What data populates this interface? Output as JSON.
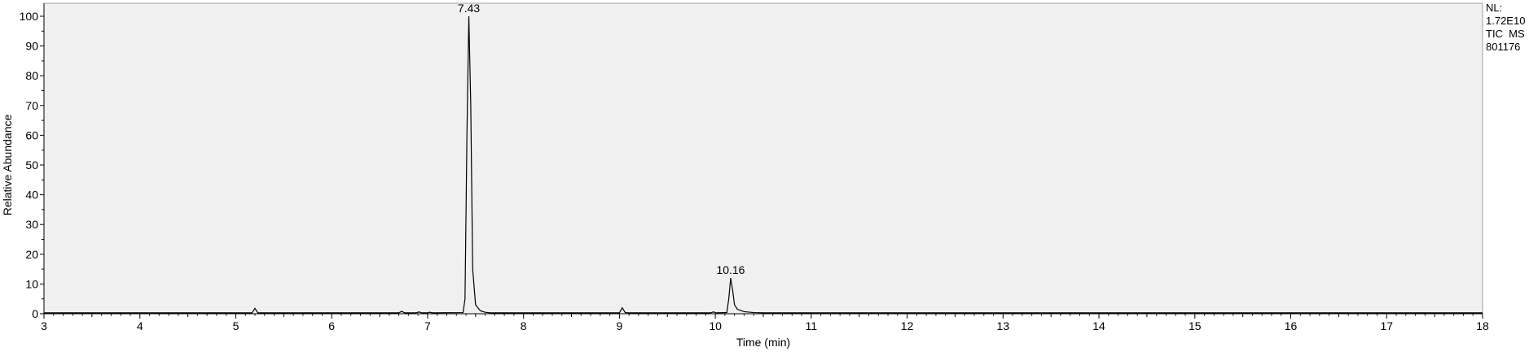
{
  "chart_data": {
    "type": "line",
    "ylabel": "Relative Abundance",
    "xlabel": "Time (min)",
    "xlim": [
      3,
      18
    ],
    "ylim": [
      0,
      100
    ],
    "x_ticks": [
      3,
      4,
      5,
      6,
      7,
      8,
      9,
      10,
      11,
      12,
      13,
      14,
      15,
      16,
      17,
      18
    ],
    "y_ticks": [
      0,
      10,
      20,
      30,
      40,
      50,
      60,
      70,
      80,
      90,
      100
    ],
    "peak_labels": [
      {
        "x": 7.43,
        "y": 100,
        "text": "7.43"
      },
      {
        "x": 10.16,
        "y": 12,
        "text": "10.16"
      }
    ],
    "info": [
      "NL:",
      "1.72E10",
      "TIC  MS",
      "801176"
    ],
    "series": [
      {
        "points": [
          [
            3.0,
            0.3
          ],
          [
            5.17,
            0.3
          ],
          [
            5.2,
            1.8
          ],
          [
            5.23,
            0.3
          ],
          [
            6.7,
            0.3
          ],
          [
            6.73,
            0.8
          ],
          [
            6.76,
            0.3
          ],
          [
            6.88,
            0.3
          ],
          [
            6.91,
            0.6
          ],
          [
            6.94,
            0.3
          ],
          [
            7.0,
            0.3
          ],
          [
            7.02,
            0.5
          ],
          [
            7.05,
            0.3
          ],
          [
            7.37,
            0.4
          ],
          [
            7.39,
            5
          ],
          [
            7.41,
            60
          ],
          [
            7.43,
            100
          ],
          [
            7.45,
            70
          ],
          [
            7.47,
            15
          ],
          [
            7.5,
            3
          ],
          [
            7.55,
            1.0
          ],
          [
            7.6,
            0.5
          ],
          [
            7.65,
            0.3
          ],
          [
            9.0,
            0.3
          ],
          [
            9.03,
            2.0
          ],
          [
            9.06,
            0.4
          ],
          [
            9.1,
            0.3
          ],
          [
            9.95,
            0.3
          ],
          [
            9.98,
            0.6
          ],
          [
            10.01,
            0.3
          ],
          [
            10.12,
            0.4
          ],
          [
            10.14,
            5
          ],
          [
            10.16,
            12
          ],
          [
            10.18,
            8
          ],
          [
            10.2,
            3
          ],
          [
            10.23,
            1.5
          ],
          [
            10.3,
            0.7
          ],
          [
            10.4,
            0.4
          ],
          [
            10.5,
            0.3
          ],
          [
            18.0,
            0.3
          ]
        ]
      }
    ]
  }
}
